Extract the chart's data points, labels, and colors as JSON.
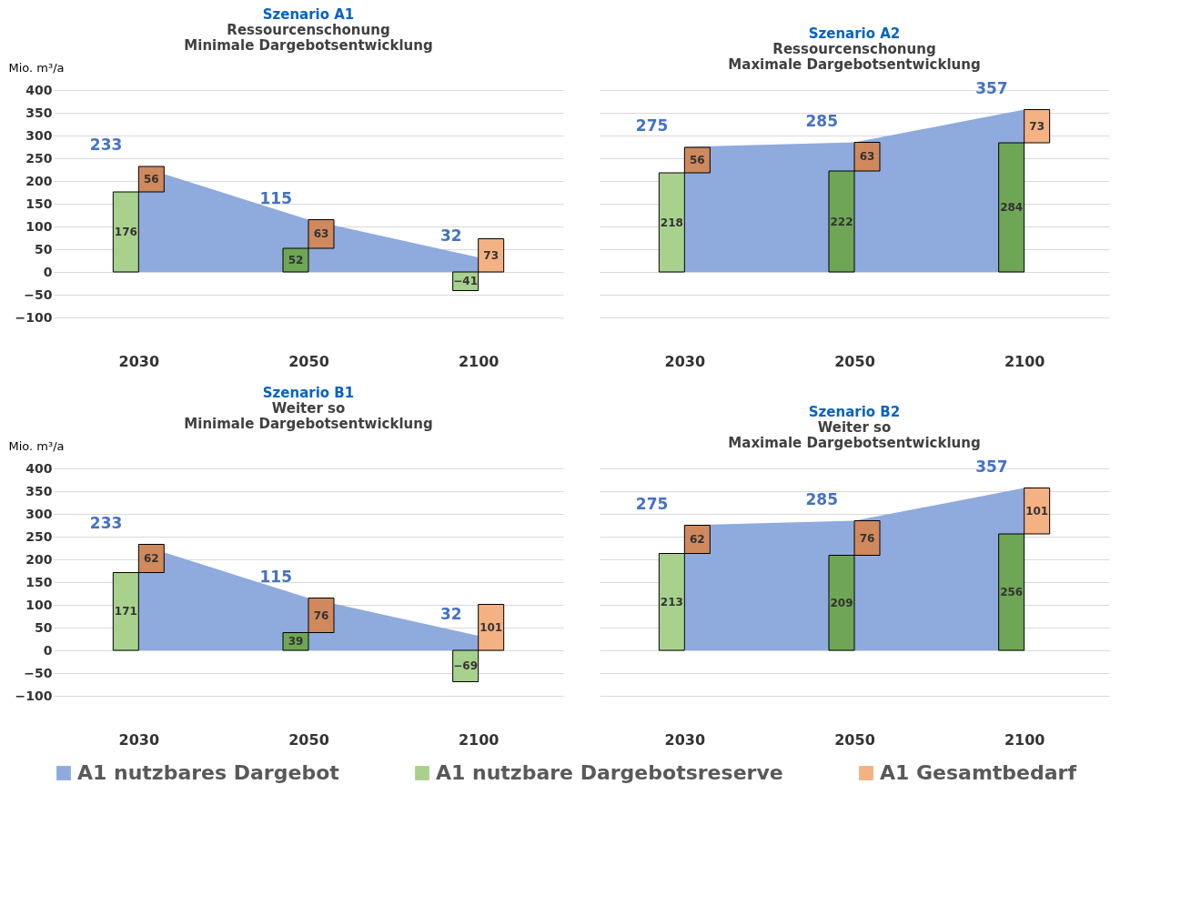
{
  "chart_data": [
    {
      "type": "bar",
      "title": "Szenario A1",
      "subtitle": "Ressourcenschonung\nMinimale Dargebotsentwicklung",
      "ylabel": "Mio. m³/a",
      "categories": [
        "2030",
        "2050",
        "2100"
      ],
      "ylim": [
        -100,
        400
      ],
      "yticks": [
        -100,
        -50,
        0,
        50,
        100,
        150,
        200,
        250,
        300,
        350,
        400
      ],
      "grid": "y",
      "legend": "bottom",
      "data_labels": true,
      "series": [
        {
          "name": "A1 nutzbares Dargebot",
          "type": "area",
          "color": "#8faadc",
          "values": [
            233,
            115,
            32
          ]
        },
        {
          "name": "A1 nutzbare Dargebotsreserve",
          "type": "bar",
          "color": "#a9d18e",
          "colors": [
            "#a9d18e",
            "#6fa656",
            "#a9d18e"
          ],
          "values": [
            176,
            52,
            -41
          ]
        },
        {
          "name": "A1 Gesamtbedarf",
          "type": "bar",
          "color": "#f4b183",
          "colors": [
            "#cf895c",
            "#cf895c",
            "#f4b183"
          ],
          "base": [
            176,
            52,
            0
          ],
          "values": [
            56,
            63,
            73
          ]
        }
      ]
    },
    {
      "type": "bar",
      "title": "Szenario A2",
      "subtitle": "Ressourcenschonung\nMaximale Dargebotsentwicklung",
      "categories": [
        "2030",
        "2050",
        "2100"
      ],
      "ylim": [
        -100,
        400
      ],
      "yticks": [
        -100,
        -50,
        0,
        50,
        100,
        150,
        200,
        250,
        300,
        350,
        400
      ],
      "tick_labels": "x",
      "grid": "y",
      "legend": "bottom",
      "data_labels": true,
      "series": [
        {
          "name": "A1 nutzbares Dargebot",
          "type": "area",
          "color": "#8faadc",
          "values": [
            275,
            285,
            357
          ]
        },
        {
          "name": "A1 nutzbare Dargebotsreserve",
          "type": "bar",
          "color": "#a9d18e",
          "colors": [
            "#a9d18e",
            "#6fa656",
            "#6fa656"
          ],
          "values": [
            218,
            222,
            284
          ]
        },
        {
          "name": "A1 Gesamtbedarf",
          "type": "bar",
          "color": "#f4b183",
          "colors": [
            "#cf895c",
            "#cf895c",
            "#f4b183"
          ],
          "base": [
            218,
            222,
            284
          ],
          "values": [
            56,
            63,
            73
          ]
        }
      ]
    },
    {
      "type": "bar",
      "title": "Szenario B1",
      "subtitle": "Weiter so\nMinimale Dargebotsentwicklung",
      "ylabel": "Mio. m³/a",
      "categories": [
        "2030",
        "2050",
        "2100"
      ],
      "ylim": [
        -100,
        400
      ],
      "yticks": [
        -100,
        -50,
        0,
        50,
        100,
        150,
        200,
        250,
        300,
        350,
        400
      ],
      "grid": "y",
      "legend": "bottom",
      "data_labels": true,
      "series": [
        {
          "name": "A1 nutzbares Dargebot",
          "type": "area",
          "color": "#8faadc",
          "values": [
            233,
            115,
            32
          ]
        },
        {
          "name": "A1 nutzbare Dargebotsreserve",
          "type": "bar",
          "color": "#a9d18e",
          "colors": [
            "#a9d18e",
            "#6fa656",
            "#a9d18e"
          ],
          "values": [
            171,
            39,
            -69
          ]
        },
        {
          "name": "A1 Gesamtbedarf",
          "type": "bar",
          "color": "#f4b183",
          "colors": [
            "#cf895c",
            "#cf895c",
            "#f4b183"
          ],
          "base": [
            171,
            39,
            0
          ],
          "values": [
            62,
            76,
            101
          ]
        }
      ]
    },
    {
      "type": "bar",
      "title": "Szenario B2",
      "subtitle": "Weiter so\nMaximale Dargebotsentwicklung",
      "categories": [
        "2030",
        "2050",
        "2100"
      ],
      "ylim": [
        -100,
        400
      ],
      "yticks": [
        -100,
        -50,
        0,
        50,
        100,
        150,
        200,
        250,
        300,
        350,
        400
      ],
      "tick_labels": "x",
      "grid": "y",
      "legend": "bottom",
      "data_labels": true,
      "series": [
        {
          "name": "A1 nutzbares Dargebot",
          "type": "area",
          "color": "#8faadc",
          "values": [
            275,
            285,
            357
          ]
        },
        {
          "name": "A1 nutzbare Dargebotsreserve",
          "type": "bar",
          "color": "#a9d18e",
          "colors": [
            "#a9d18e",
            "#6fa656",
            "#6fa656"
          ],
          "values": [
            213,
            209,
            256
          ]
        },
        {
          "name": "A1 Gesamtbedarf",
          "type": "bar",
          "color": "#f4b183",
          "colors": [
            "#cf895c",
            "#cf895c",
            "#f4b183"
          ],
          "base": [
            213,
            209,
            256
          ],
          "values": [
            62,
            76,
            101
          ]
        }
      ]
    }
  ]
}
